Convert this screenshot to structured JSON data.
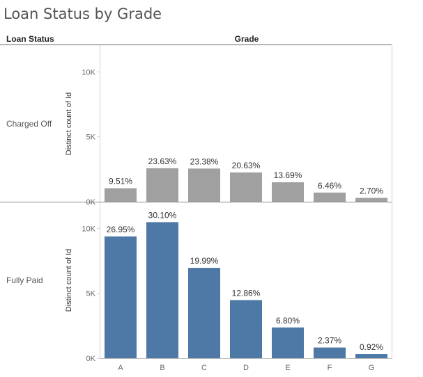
{
  "title": "Loan Status by Grade",
  "row_header": "Loan Status",
  "column_header": "Grade",
  "colors": {
    "charged_off": "#a0a0a0",
    "fully_paid": "#4e79a7"
  },
  "chart_data": {
    "type": "bar",
    "categories": [
      "A",
      "B",
      "C",
      "D",
      "E",
      "F",
      "G"
    ],
    "ylabel": "Distinct count of Id",
    "ylim": [
      0,
      12000
    ],
    "yticks": [
      0,
      5000,
      10000
    ],
    "ytick_labels": [
      "0K",
      "5K",
      "10K"
    ],
    "grid": false,
    "series": [
      {
        "name": "Charged Off",
        "values": [
          1040,
          2580,
          2555,
          2255,
          1495,
          705,
          295
        ],
        "labels": [
          "9.51%",
          "23.63%",
          "23.38%",
          "20.63%",
          "13.69%",
          "6.46%",
          "2.70%"
        ]
      },
      {
        "name": "Fully Paid",
        "values": [
          9380,
          10480,
          6960,
          4480,
          2370,
          825,
          320
        ],
        "labels": [
          "26.95%",
          "30.10%",
          "19.99%",
          "12.86%",
          "6.80%",
          "2.37%",
          "0.92%"
        ]
      }
    ]
  }
}
